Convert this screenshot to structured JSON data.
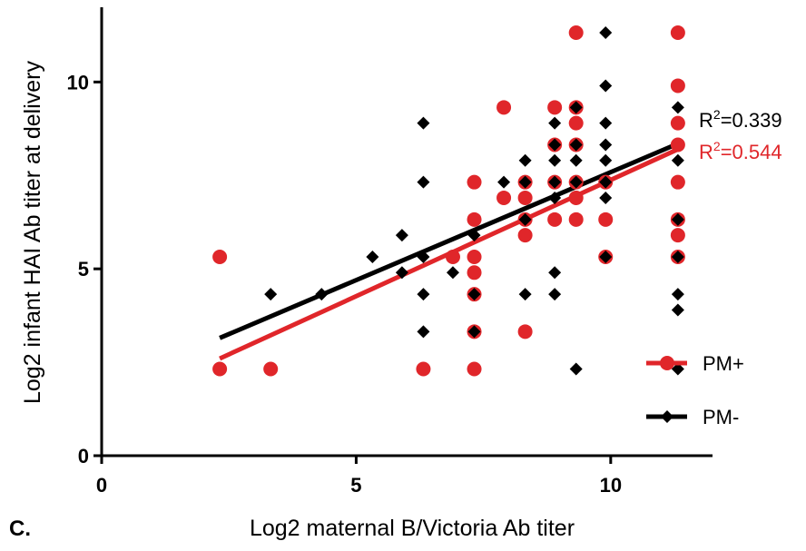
{
  "panel_label": "C.",
  "colors": {
    "pm_plus": "#e0262a",
    "pm_minus": "#000000",
    "axis": "#000000"
  },
  "chart_data": {
    "type": "scatter",
    "title": "",
    "xlabel": "Log2 maternal B/Victoria Ab titer",
    "ylabel": "Log2 infant HAI Ab titer at delivery",
    "xlim": [
      0,
      12
    ],
    "ylim": [
      0,
      12
    ],
    "xticks": [
      0,
      5,
      10
    ],
    "yticks": [
      0,
      5,
      10
    ],
    "grid": false,
    "legend_position": "bottom-right",
    "series": [
      {
        "name": "PM+",
        "marker": "circle",
        "color": "#e0262a",
        "r2_text": "R",
        "r2_value": "=0.544",
        "fit": {
          "x": [
            2.32,
            11.32
          ],
          "y": [
            2.6,
            8.2
          ]
        },
        "points": [
          [
            2.32,
            5.32
          ],
          [
            2.32,
            2.32
          ],
          [
            3.32,
            2.32
          ],
          [
            6.32,
            2.32
          ],
          [
            6.9,
            5.32
          ],
          [
            7.32,
            7.32
          ],
          [
            7.32,
            6.32
          ],
          [
            7.32,
            5.32
          ],
          [
            7.32,
            4.9
          ],
          [
            7.32,
            4.32
          ],
          [
            7.32,
            3.32
          ],
          [
            7.32,
            2.32
          ],
          [
            7.9,
            9.32
          ],
          [
            7.9,
            6.9
          ],
          [
            8.32,
            7.32
          ],
          [
            8.32,
            6.9
          ],
          [
            8.32,
            6.32
          ],
          [
            8.32,
            5.9
          ],
          [
            8.32,
            3.32
          ],
          [
            8.9,
            9.32
          ],
          [
            8.9,
            8.32
          ],
          [
            8.9,
            7.32
          ],
          [
            8.9,
            6.32
          ],
          [
            9.32,
            11.32
          ],
          [
            9.32,
            9.32
          ],
          [
            9.32,
            8.9
          ],
          [
            9.32,
            8.32
          ],
          [
            9.32,
            7.32
          ],
          [
            9.32,
            6.9
          ],
          [
            9.32,
            6.32
          ],
          [
            9.9,
            7.32
          ],
          [
            9.9,
            6.32
          ],
          [
            9.9,
            5.32
          ],
          [
            11.32,
            11.32
          ],
          [
            11.32,
            9.9
          ],
          [
            11.32,
            8.9
          ],
          [
            11.32,
            8.32
          ],
          [
            11.32,
            7.32
          ],
          [
            11.32,
            6.32
          ],
          [
            11.32,
            5.9
          ],
          [
            11.32,
            5.32
          ]
        ]
      },
      {
        "name": "PM-",
        "marker": "diamond",
        "color": "#000000",
        "r2_text": "R",
        "r2_value": "=0.339",
        "fit": {
          "x": [
            2.32,
            11.32
          ],
          "y": [
            3.15,
            8.35
          ]
        },
        "points": [
          [
            3.32,
            4.32
          ],
          [
            4.32,
            4.32
          ],
          [
            5.32,
            5.32
          ],
          [
            5.9,
            5.9
          ],
          [
            5.9,
            4.9
          ],
          [
            6.32,
            8.9
          ],
          [
            6.32,
            7.32
          ],
          [
            6.32,
            5.32
          ],
          [
            6.32,
            4.32
          ],
          [
            6.32,
            3.32
          ],
          [
            6.9,
            4.9
          ],
          [
            7.32,
            5.9
          ],
          [
            7.32,
            4.32
          ],
          [
            7.32,
            3.32
          ],
          [
            7.9,
            7.32
          ],
          [
            8.32,
            7.9
          ],
          [
            8.32,
            7.32
          ],
          [
            8.32,
            6.32
          ],
          [
            8.32,
            4.32
          ],
          [
            8.9,
            8.9
          ],
          [
            8.9,
            8.32
          ],
          [
            8.9,
            7.9
          ],
          [
            8.9,
            7.32
          ],
          [
            8.9,
            6.9
          ],
          [
            8.9,
            4.9
          ],
          [
            8.9,
            4.32
          ],
          [
            9.32,
            9.32
          ],
          [
            9.32,
            8.32
          ],
          [
            9.32,
            7.9
          ],
          [
            9.32,
            7.32
          ],
          [
            9.32,
            2.32
          ],
          [
            9.9,
            11.32
          ],
          [
            9.9,
            9.9
          ],
          [
            9.9,
            8.9
          ],
          [
            9.9,
            8.32
          ],
          [
            9.9,
            7.9
          ],
          [
            9.9,
            7.32
          ],
          [
            9.9,
            6.9
          ],
          [
            9.9,
            5.32
          ],
          [
            11.32,
            9.32
          ],
          [
            11.32,
            7.9
          ],
          [
            11.32,
            6.32
          ],
          [
            11.32,
            5.32
          ],
          [
            11.32,
            4.32
          ],
          [
            11.32,
            3.9
          ],
          [
            11.32,
            2.32
          ]
        ]
      }
    ],
    "r2_superscript": "2"
  }
}
